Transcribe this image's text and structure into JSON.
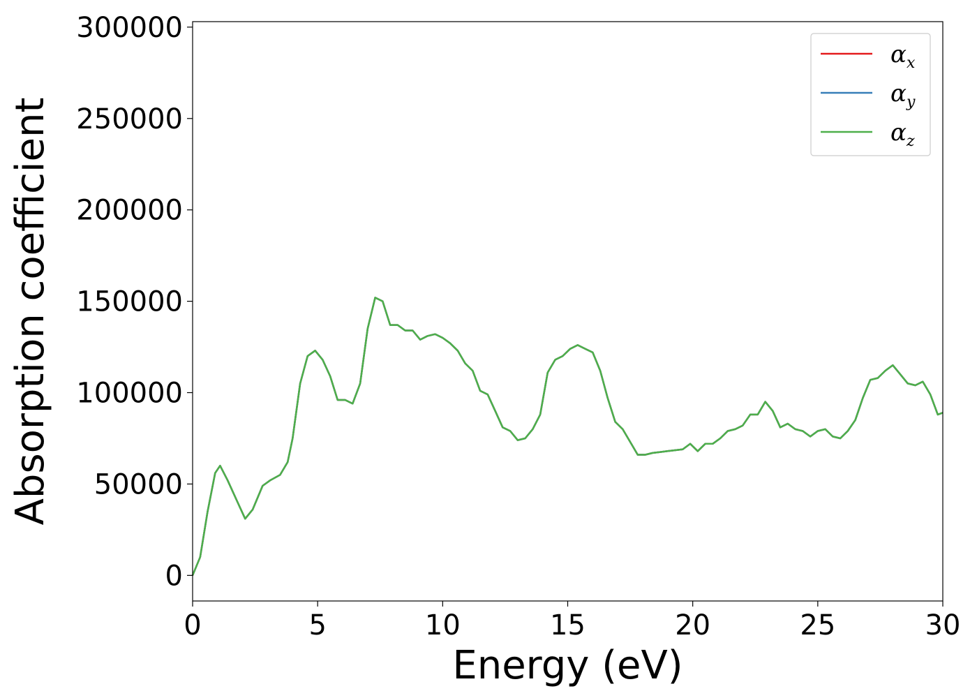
{
  "chart_data": {
    "type": "line",
    "title": "",
    "xlabel": "Energy (eV)",
    "ylabel": "Absorption coefficient",
    "xlim": [
      0,
      30
    ],
    "ylim": [
      -14000,
      303000
    ],
    "xticks": [
      0,
      5,
      10,
      15,
      20,
      25,
      30
    ],
    "yticks": [
      0,
      50000,
      100000,
      150000,
      200000,
      250000,
      300000
    ],
    "grid": false,
    "legend_position": "top-right",
    "x": [
      0,
      0.3,
      0.6,
      0.9,
      1.1,
      1.4,
      1.8,
      2.1,
      2.4,
      2.8,
      3.1,
      3.5,
      3.8,
      4.0,
      4.3,
      4.6,
      4.9,
      5.2,
      5.5,
      5.8,
      6.1,
      6.4,
      6.7,
      7.0,
      7.3,
      7.6,
      7.9,
      8.2,
      8.5,
      8.8,
      9.1,
      9.4,
      9.7,
      10.0,
      10.3,
      10.6,
      10.9,
      11.2,
      11.5,
      11.8,
      12.1,
      12.4,
      12.7,
      13.0,
      13.3,
      13.6,
      13.9,
      14.2,
      14.5,
      14.8,
      15.1,
      15.4,
      15.7,
      16.0,
      16.3,
      16.6,
      16.9,
      17.2,
      17.5,
      17.8,
      18.1,
      18.4,
      18.7,
      19.0,
      19.3,
      19.6,
      19.9,
      20.2,
      20.5,
      20.8,
      21.1,
      21.4,
      21.7,
      22.0,
      22.3,
      22.6,
      22.9,
      23.2,
      23.5,
      23.8,
      24.1,
      24.4,
      24.7,
      25.0,
      25.3,
      25.6,
      25.9,
      26.2,
      26.5,
      26.8,
      27.1,
      27.4,
      27.7,
      28.0,
      28.3,
      28.6,
      28.9,
      29.2,
      29.5,
      29.8,
      30.0
    ],
    "series": [
      {
        "name": "α_x",
        "color": "#e41a1c",
        "values": [
          0,
          10000,
          35000,
          56000,
          60000,
          52000,
          40000,
          31000,
          36000,
          49000,
          52000,
          55000,
          62000,
          75000,
          105000,
          120000,
          123000,
          118000,
          109000,
          96000,
          96000,
          94000,
          105000,
          135000,
          152000,
          150000,
          137000,
          137000,
          134000,
          134000,
          129000,
          131000,
          132000,
          130000,
          127000,
          123000,
          116000,
          112000,
          101000,
          99000,
          90000,
          81000,
          79000,
          74000,
          75000,
          80000,
          88000,
          111000,
          118000,
          120000,
          124000,
          126000,
          124000,
          122000,
          112000,
          97000,
          84000,
          80000,
          73000,
          66000,
          66000,
          67000,
          67500,
          68000,
          68500,
          69000,
          72000,
          68000,
          72000,
          72000,
          75000,
          79000,
          80000,
          82000,
          88000,
          88000,
          95000,
          90000,
          81000,
          83000,
          80000,
          79000,
          76000,
          79000,
          80000,
          76000,
          75000,
          79000,
          85000,
          97000,
          107000,
          108000,
          112000,
          115000,
          110000,
          105000,
          104000,
          106000,
          99000,
          88000,
          89000
        ]
      },
      {
        "name": "α_y",
        "color": "#377eb8",
        "values": [
          0,
          10000,
          35000,
          56000,
          60000,
          52000,
          40000,
          31000,
          36000,
          49000,
          52000,
          55000,
          62000,
          75000,
          105000,
          120000,
          123000,
          118000,
          109000,
          96000,
          96000,
          94000,
          105000,
          135000,
          152000,
          150000,
          137000,
          137000,
          134000,
          134000,
          129000,
          131000,
          132000,
          130000,
          127000,
          123000,
          116000,
          112000,
          101000,
          99000,
          90000,
          81000,
          79000,
          74000,
          75000,
          80000,
          88000,
          111000,
          118000,
          120000,
          124000,
          126000,
          124000,
          122000,
          112000,
          97000,
          84000,
          80000,
          73000,
          66000,
          66000,
          67000,
          67500,
          68000,
          68500,
          69000,
          72000,
          68000,
          72000,
          72000,
          75000,
          79000,
          80000,
          82000,
          88000,
          88000,
          95000,
          90000,
          81000,
          83000,
          80000,
          79000,
          76000,
          79000,
          80000,
          76000,
          75000,
          79000,
          85000,
          97000,
          107000,
          108000,
          112000,
          115000,
          110000,
          105000,
          104000,
          106000,
          99000,
          88000,
          89000
        ]
      },
      {
        "name": "α_z",
        "color": "#4daf4a",
        "values": [
          0,
          10000,
          35000,
          56000,
          60000,
          52000,
          40000,
          31000,
          36000,
          49000,
          52000,
          55000,
          62000,
          75000,
          105000,
          120000,
          123000,
          118000,
          109000,
          96000,
          96000,
          94000,
          105000,
          135000,
          152000,
          150000,
          137000,
          137000,
          134000,
          134000,
          129000,
          131000,
          132000,
          130000,
          127000,
          123000,
          116000,
          112000,
          101000,
          99000,
          90000,
          81000,
          79000,
          74000,
          75000,
          80000,
          88000,
          111000,
          118000,
          120000,
          124000,
          126000,
          124000,
          122000,
          112000,
          97000,
          84000,
          80000,
          73000,
          66000,
          66000,
          67000,
          67500,
          68000,
          68500,
          69000,
          72000,
          68000,
          72000,
          72000,
          75000,
          79000,
          80000,
          82000,
          88000,
          88000,
          95000,
          90000,
          81000,
          83000,
          80000,
          79000,
          76000,
          79000,
          80000,
          76000,
          75000,
          79000,
          85000,
          97000,
          107000,
          108000,
          112000,
          115000,
          110000,
          105000,
          104000,
          106000,
          99000,
          88000,
          89000
        ]
      }
    ],
    "legend": [
      {
        "symbol": "α",
        "sub": "x",
        "color": "#e41a1c"
      },
      {
        "symbol": "α",
        "sub": "y",
        "color": "#377eb8"
      },
      {
        "symbol": "α",
        "sub": "z",
        "color": "#4daf4a"
      }
    ]
  }
}
